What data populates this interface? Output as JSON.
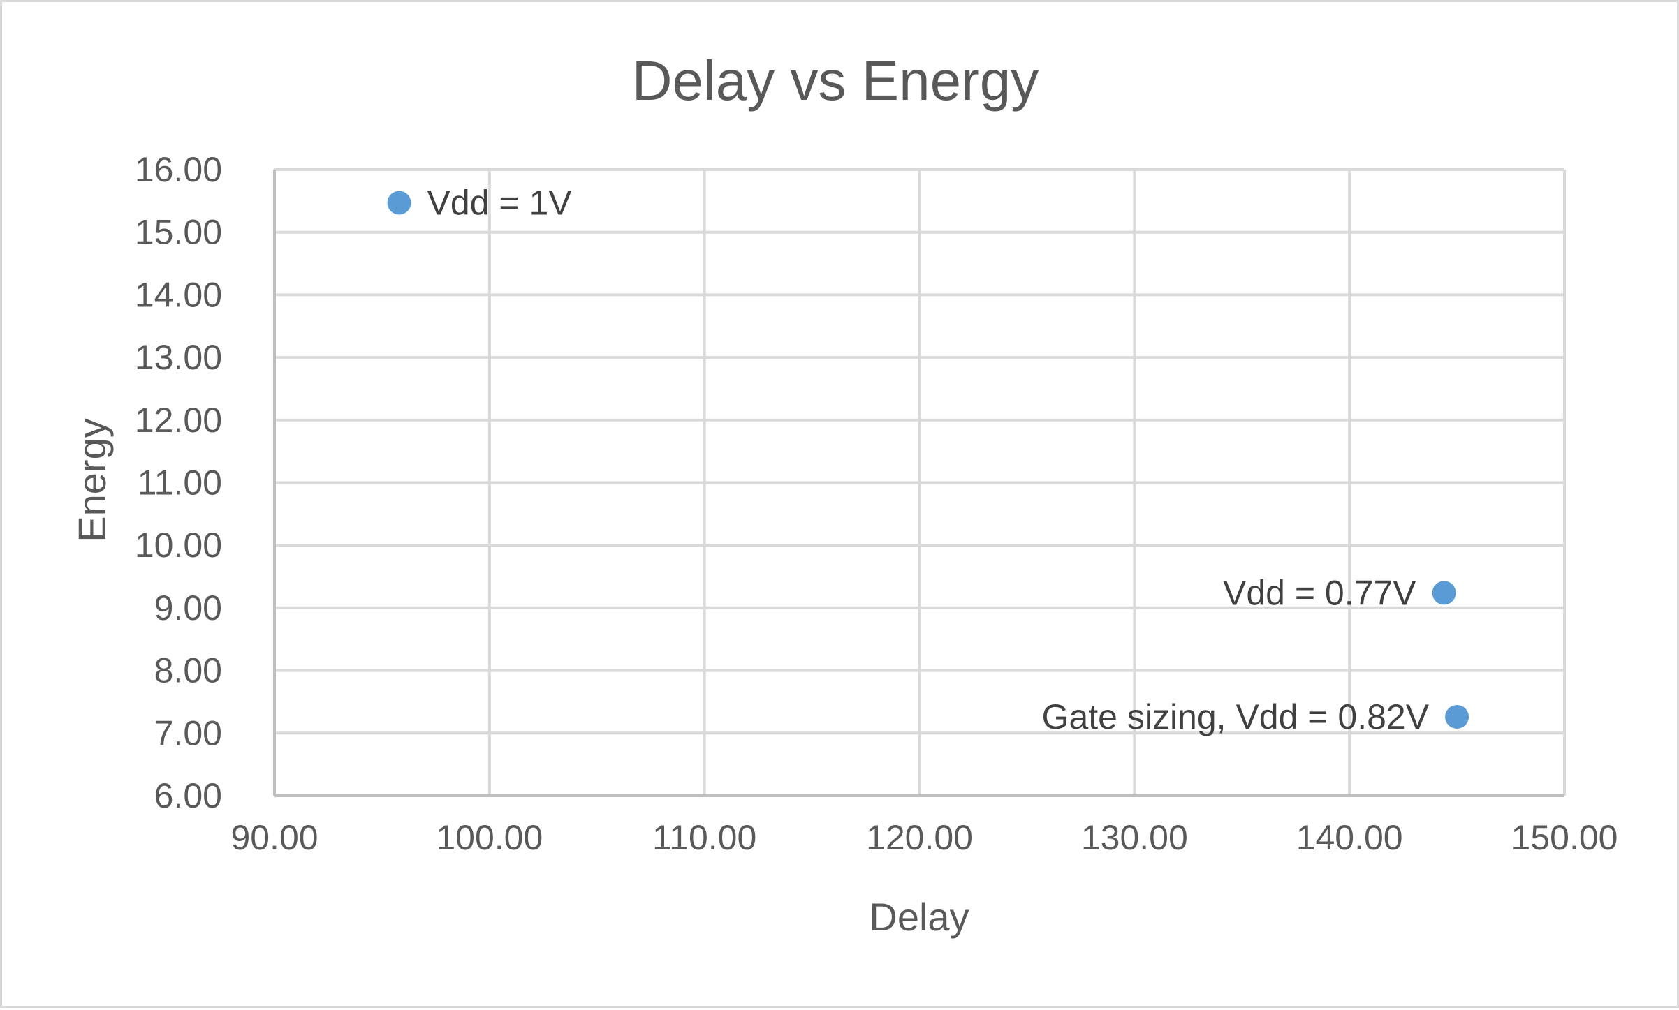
{
  "chart_data": {
    "type": "scatter",
    "title": "Delay vs Energy",
    "xlabel": "Delay",
    "ylabel": "Energy",
    "xlim": [
      90,
      150
    ],
    "ylim": [
      6,
      16
    ],
    "x_ticks": [
      "90.00",
      "100.00",
      "110.00",
      "120.00",
      "130.00",
      "140.00",
      "150.00"
    ],
    "y_ticks": [
      "6.00",
      "7.00",
      "8.00",
      "9.00",
      "10.00",
      "11.00",
      "12.00",
      "13.00",
      "14.00",
      "15.00",
      "16.00"
    ],
    "x_tick_values": [
      90,
      100,
      110,
      120,
      130,
      140,
      150
    ],
    "y_tick_values": [
      6,
      7,
      8,
      9,
      10,
      11,
      12,
      13,
      14,
      15,
      16
    ],
    "grid": true,
    "legend": "none",
    "marker_color": "#5b9bd5",
    "points": [
      {
        "x": 95.8,
        "y": 15.47,
        "label": "Vdd = 1V",
        "label_side": "right"
      },
      {
        "x": 144.4,
        "y": 9.24,
        "label": "Vdd = 0.77V",
        "label_side": "left"
      },
      {
        "x": 145.0,
        "y": 7.26,
        "label": "Gate sizing, Vdd = 0.82V",
        "label_side": "left"
      }
    ]
  }
}
